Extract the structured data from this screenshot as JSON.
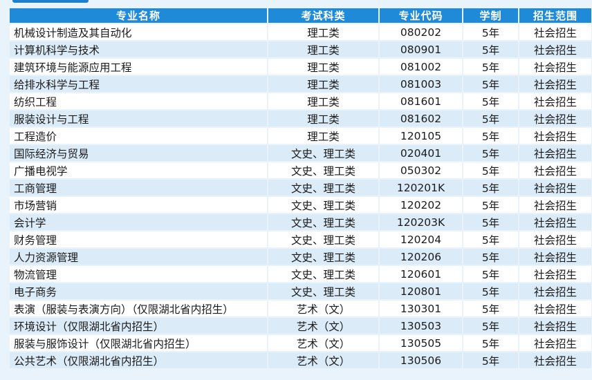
{
  "table": {
    "headers": [
      "专业名称",
      "考试科类",
      "专业代码",
      "学制",
      "招生范围"
    ],
    "rows": [
      {
        "name": "机械设计制造及其自动化",
        "category": "理工类",
        "code": "080202",
        "duration": "5年",
        "scope": "社会招生"
      },
      {
        "name": "计算机科学与技术",
        "category": "理工类",
        "code": "080901",
        "duration": "5年",
        "scope": "社会招生"
      },
      {
        "name": "建筑环境与能源应用工程",
        "category": "理工类",
        "code": "081002",
        "duration": "5年",
        "scope": "社会招生"
      },
      {
        "name": "给排水科学与工程",
        "category": "理工类",
        "code": "081003",
        "duration": "5年",
        "scope": "社会招生"
      },
      {
        "name": "纺织工程",
        "category": "理工类",
        "code": "081601",
        "duration": "5年",
        "scope": "社会招生"
      },
      {
        "name": "服装设计与工程",
        "category": "理工类",
        "code": "081602",
        "duration": "5年",
        "scope": "社会招生"
      },
      {
        "name": "工程造价",
        "category": "理工类",
        "code": "120105",
        "duration": "5年",
        "scope": "社会招生"
      },
      {
        "name": "国际经济与贸易",
        "category": "文史、理工类",
        "code": "020401",
        "duration": "5年",
        "scope": "社会招生"
      },
      {
        "name": "广播电视学",
        "category": "文史、理工类",
        "code": "050302",
        "duration": "5年",
        "scope": "社会招生"
      },
      {
        "name": "工商管理",
        "category": "文史、理工类",
        "code": "120201K",
        "duration": "5年",
        "scope": "社会招生"
      },
      {
        "name": "市场营销",
        "category": "文史、理工类",
        "code": "120202",
        "duration": "5年",
        "scope": "社会招生"
      },
      {
        "name": "会计学",
        "category": "文史、理工类",
        "code": "120203K",
        "duration": "5年",
        "scope": "社会招生"
      },
      {
        "name": "财务管理",
        "category": "文史、理工类",
        "code": "120204",
        "duration": "5年",
        "scope": "社会招生"
      },
      {
        "name": "人力资源管理",
        "category": "文史、理工类",
        "code": "120206",
        "duration": "5年",
        "scope": "社会招生"
      },
      {
        "name": "物流管理",
        "category": "文史、理工类",
        "code": "120601",
        "duration": "5年",
        "scope": "社会招生"
      },
      {
        "name": "电子商务",
        "category": "文史、理工类",
        "code": "120801",
        "duration": "5年",
        "scope": "社会招生"
      },
      {
        "name": "表演（服装与表演方向）（仅限湖北省内招生）",
        "category": "艺术（文）",
        "code": "130301",
        "duration": "5年",
        "scope": "社会招生"
      },
      {
        "name": "环境设计（仅限湖北省内招生）",
        "category": "艺术（文）",
        "code": "130503",
        "duration": "5年",
        "scope": "社会招生"
      },
      {
        "name": "服装与服饰设计（仅限湖北省内招生）",
        "category": "艺术（文）",
        "code": "130505",
        "duration": "5年",
        "scope": "社会招生"
      },
      {
        "name": "公共艺术（仅限湖北省内招生）",
        "category": "艺术（文）",
        "code": "130506",
        "duration": "5年",
        "scope": "社会招生"
      }
    ]
  }
}
